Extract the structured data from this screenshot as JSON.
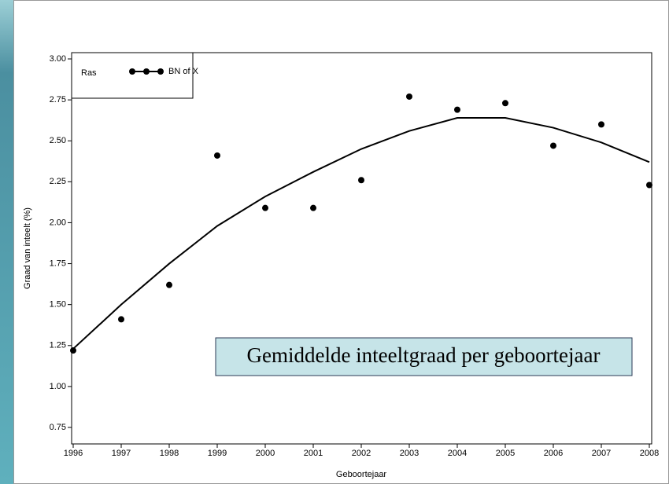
{
  "chart_data": {
    "type": "scatter",
    "x_label": "Geboortejaar",
    "y_label": "Graad van inteelt (%)",
    "legend_title": "Ras",
    "legend": "top-left",
    "annotation": "Gemiddelde inteeltgraad per geboortejaar",
    "x": [
      1996,
      1997,
      1998,
      1999,
      2000,
      2001,
      2002,
      2003,
      2004,
      2005,
      2006,
      2007,
      2008
    ],
    "series": [
      {
        "name": "BN of X",
        "color": "#000000",
        "values": [
          1.22,
          1.41,
          1.62,
          2.41,
          2.09,
          2.09,
          2.26,
          2.77,
          2.69,
          2.73,
          2.47,
          2.6,
          2.23
        ],
        "fit": [
          1.23,
          1.5,
          1.75,
          1.98,
          2.16,
          2.31,
          2.45,
          2.56,
          2.64,
          2.64,
          2.58,
          2.49,
          2.37
        ]
      }
    ],
    "xlim": [
      1996,
      2008
    ],
    "xticks": [
      1996,
      1997,
      1998,
      1999,
      2000,
      2001,
      2002,
      2003,
      2004,
      2005,
      2006,
      2007,
      2008
    ],
    "ylim": [
      0.75,
      3.0
    ],
    "yticks": [
      {
        "value": 0.75,
        "label": "0.75"
      },
      {
        "value": 1.0,
        "label": "1.00"
      },
      {
        "value": 1.25,
        "label": "1.25"
      },
      {
        "value": 1.5,
        "label": "1.50"
      },
      {
        "value": 1.75,
        "label": "1.75"
      },
      {
        "value": 2.0,
        "label": "2.00"
      },
      {
        "value": 2.25,
        "label": "2.25"
      },
      {
        "value": 2.5,
        "label": "2.50"
      },
      {
        "value": 2.75,
        "label": "2.75"
      },
      {
        "value": 3.0,
        "label": "3.00"
      }
    ]
  }
}
